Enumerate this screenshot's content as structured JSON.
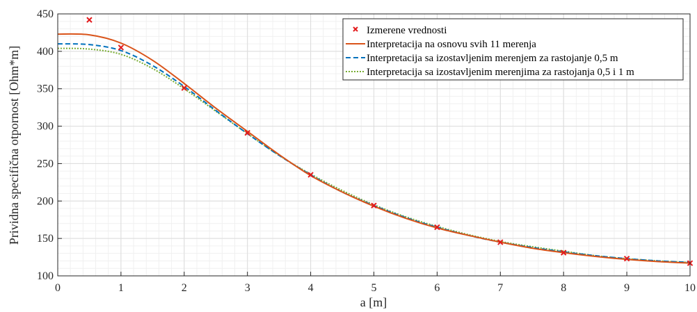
{
  "chart_data": {
    "type": "line",
    "xlabel": "a [m]",
    "ylabel": "Prividna specifična otpornost [Ohm*m]",
    "xlim": [
      0,
      10
    ],
    "ylim": [
      100,
      450
    ],
    "xticks": [
      "0",
      "1",
      "2",
      "3",
      "4",
      "5",
      "6",
      "7",
      "8",
      "9",
      "10"
    ],
    "yticks": [
      "100",
      "150",
      "200",
      "250",
      "300",
      "350",
      "400",
      "450"
    ],
    "grid": true,
    "legend_position": "top-right",
    "series": [
      {
        "name": "Izmerene vrednosti",
        "kind": "marker",
        "color": "#e31a1c",
        "x": [
          0.5,
          1,
          2,
          3,
          4,
          5,
          6,
          7,
          8,
          9,
          10
        ],
        "y": [
          442,
          405,
          351,
          291,
          235,
          194,
          165,
          145,
          131,
          123,
          117
        ]
      },
      {
        "name": "Interpretacija na osnovu svih 11 merenja",
        "kind": "solid",
        "color": "#d95319",
        "x": [
          0,
          0.5,
          1,
          1.5,
          2,
          2.5,
          3,
          3.5,
          4,
          4.5,
          5,
          5.5,
          6,
          6.5,
          7,
          7.5,
          8,
          8.5,
          9,
          9.5,
          10
        ],
        "y": [
          423,
          422,
          411,
          388,
          357,
          324,
          293,
          262,
          234,
          212,
          193,
          177,
          164,
          154,
          145,
          137,
          131,
          126,
          122,
          119,
          117
        ]
      },
      {
        "name": "Interpretacija sa izostavljenim merenjem za rastojanje 0,5 m",
        "kind": "dashed",
        "color": "#0072bd",
        "x": [
          0,
          0.5,
          1,
          1.5,
          2,
          2.5,
          3,
          3.5,
          4,
          4.5,
          5,
          5.5,
          6,
          6.5,
          7,
          7.5,
          8,
          8.5,
          9,
          9.5,
          10
        ],
        "y": [
          410,
          409,
          401,
          381,
          353,
          321,
          290,
          261,
          235,
          212,
          194,
          178,
          165,
          154,
          145,
          138,
          132,
          127,
          123,
          120,
          118
        ]
      },
      {
        "name": "Interpretacija sa izostavljenim merenjima za rastojanja 0,5 i 1 m",
        "kind": "dotted",
        "color": "#77ac30",
        "x": [
          0,
          0.5,
          1,
          1.5,
          2,
          2.5,
          3,
          3.5,
          4,
          4.5,
          5,
          5.5,
          6,
          6.5,
          7,
          7.5,
          8,
          8.5,
          9,
          9.5,
          10
        ],
        "y": [
          404,
          403,
          396,
          377,
          350,
          320,
          290,
          261,
          236,
          214,
          195,
          179,
          166,
          155,
          146,
          139,
          133,
          127,
          123,
          120,
          118
        ]
      }
    ]
  }
}
